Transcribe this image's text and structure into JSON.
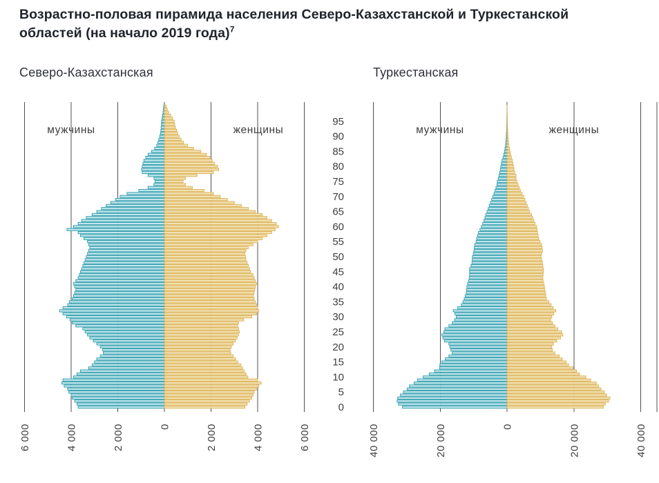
{
  "title": {
    "text": "Возрастно-половая пирамида населения Северо-Казахстанской и Туркестанской областей (на начало 2019 года)",
    "superscript": "7"
  },
  "colors": {
    "male_fill": "#c3e8ee",
    "male_stroke": "#379fae",
    "female_fill": "#f2e2b4",
    "female_stroke": "#ddb45a",
    "grid": "#4d4d4d",
    "axis_text": "#3d3d3d",
    "title_text": "#20242c"
  },
  "chart_data": {
    "type": "bar",
    "subtype": "population-pyramid",
    "orientation": "horizontal",
    "age_range": "single-year ages 0–100, bottom to top",
    "age_ticks": [
      95,
      90,
      85,
      80,
      75,
      70,
      65,
      60,
      55,
      50,
      45,
      40,
      35,
      30,
      25,
      20,
      15,
      10,
      5,
      0
    ],
    "charts": [
      {
        "name": "Северо-Казахстанская",
        "male_label": "мужчины",
        "female_label": "женщины",
        "xlim": [
          -6000,
          6000
        ],
        "x_ticks": [
          -6000,
          -4000,
          -2000,
          0,
          2000,
          4000,
          6000
        ],
        "x_tick_labels": [
          "6 000",
          "4 000",
          "2 000",
          "0",
          "2 000",
          "4 000",
          "6 000"
        ],
        "series": {
          "male": [
            3700,
            3750,
            3850,
            3950,
            4000,
            4100,
            4150,
            4300,
            4400,
            4350,
            3900,
            3750,
            3600,
            3250,
            3100,
            3000,
            2900,
            2750,
            2620,
            2650,
            2750,
            2900,
            3050,
            3200,
            3300,
            3400,
            3500,
            3800,
            3950,
            4050,
            4200,
            4350,
            4500,
            4350,
            4150,
            4080,
            3950,
            3900,
            3850,
            3800,
            3850,
            3900,
            3800,
            3700,
            3650,
            3600,
            3550,
            3500,
            3450,
            3400,
            3350,
            3300,
            3250,
            3200,
            3250,
            3300,
            3450,
            3600,
            3700,
            4180,
            3900,
            3700,
            3550,
            3350,
            3100,
            2900,
            2700,
            2500,
            2300,
            2100,
            1900,
            1600,
            1100,
            700,
            450,
            400,
            450,
            700,
            950,
            980,
            950,
            920,
            880,
            800,
            700,
            550,
            420,
            330,
            280,
            240,
            200,
            170,
            150,
            140,
            130,
            120,
            100,
            80,
            60,
            40,
            30
          ],
          "female": [
            3450,
            3550,
            3650,
            3750,
            3800,
            3850,
            3950,
            4050,
            4150,
            4000,
            3580,
            3500,
            3420,
            3350,
            3280,
            3150,
            3050,
            2950,
            2850,
            2820,
            2870,
            2950,
            3050,
            3120,
            3180,
            3220,
            3180,
            3150,
            3180,
            3400,
            3750,
            3950,
            4050,
            4000,
            3950,
            3900,
            3850,
            3820,
            3850,
            3880,
            3900,
            3950,
            3900,
            3850,
            3800,
            3700,
            3650,
            3600,
            3550,
            3500,
            3480,
            3450,
            3500,
            3600,
            3800,
            4000,
            4200,
            4400,
            4600,
            4750,
            4890,
            4800,
            4600,
            4400,
            4200,
            3900,
            3600,
            3300,
            3000,
            2700,
            2400,
            2100,
            1700,
            1200,
            900,
            800,
            900,
            1400,
            2100,
            2330,
            2280,
            2150,
            2050,
            1950,
            1800,
            1560,
            1250,
            1000,
            820,
            720,
            640,
            570,
            520,
            470,
            440,
            420,
            350,
            270,
            180,
            120,
            80
          ]
        }
      },
      {
        "name": "Туркестанская",
        "male_label": "мужчины",
        "female_label": "женщины",
        "xlim": [
          -45000,
          45000
        ],
        "x_ticks": [
          -40000,
          -20000,
          0,
          20000,
          40000
        ],
        "x_tick_labels": [
          "40 000",
          "20 000",
          "0",
          "20 000",
          "40 000"
        ],
        "series": {
          "male": [
            31300,
            32500,
            32900,
            32700,
            31900,
            31000,
            29900,
            29200,
            27800,
            26800,
            25100,
            23300,
            21700,
            20200,
            20100,
            19500,
            18500,
            17400,
            16400,
            16800,
            17100,
            17400,
            18700,
            19200,
            19500,
            18900,
            18600,
            17400,
            16400,
            15700,
            15200,
            15600,
            16100,
            14800,
            13700,
            13200,
            12800,
            12500,
            12200,
            12100,
            12000,
            11800,
            11500,
            11300,
            11200,
            11200,
            11200,
            10800,
            10500,
            10400,
            10350,
            10100,
            9900,
            9800,
            9650,
            9250,
            9100,
            8800,
            8550,
            8100,
            7700,
            7300,
            6900,
            6600,
            6350,
            6000,
            5650,
            5300,
            4950,
            4600,
            4250,
            3900,
            3600,
            3300,
            3000,
            2900,
            2600,
            2400,
            2200,
            2000,
            1860,
            1680,
            1500,
            1200,
            960,
            800,
            600,
            450,
            350,
            280,
            220,
            170,
            130,
            100,
            80,
            60,
            50,
            40,
            30,
            20,
            15
          ],
          "female": [
            28800,
            29400,
            30400,
            30800,
            29800,
            29100,
            28100,
            27400,
            26700,
            25000,
            23600,
            21700,
            20800,
            19800,
            18400,
            17700,
            16500,
            15600,
            14300,
            13600,
            13400,
            13900,
            14900,
            16000,
            16700,
            16300,
            15200,
            14300,
            13600,
            13100,
            13400,
            14000,
            14600,
            13800,
            13200,
            12500,
            11800,
            11600,
            11500,
            11300,
            11200,
            11000,
            10800,
            10700,
            10800,
            10900,
            10900,
            10700,
            10600,
            10400,
            10200,
            10400,
            10600,
            10500,
            10350,
            9850,
            9500,
            9300,
            9150,
            9000,
            8850,
            8400,
            8000,
            7650,
            7300,
            6750,
            6400,
            6050,
            5700,
            5350,
            5000,
            4500,
            4000,
            3650,
            3300,
            2950,
            2700,
            2700,
            2300,
            2100,
            1930,
            1750,
            1580,
            1300,
            1100,
            900,
            700,
            550,
            450,
            380,
            300,
            240,
            190,
            150,
            120,
            100,
            80,
            60,
            45,
            30,
            20
          ]
        }
      }
    ]
  }
}
